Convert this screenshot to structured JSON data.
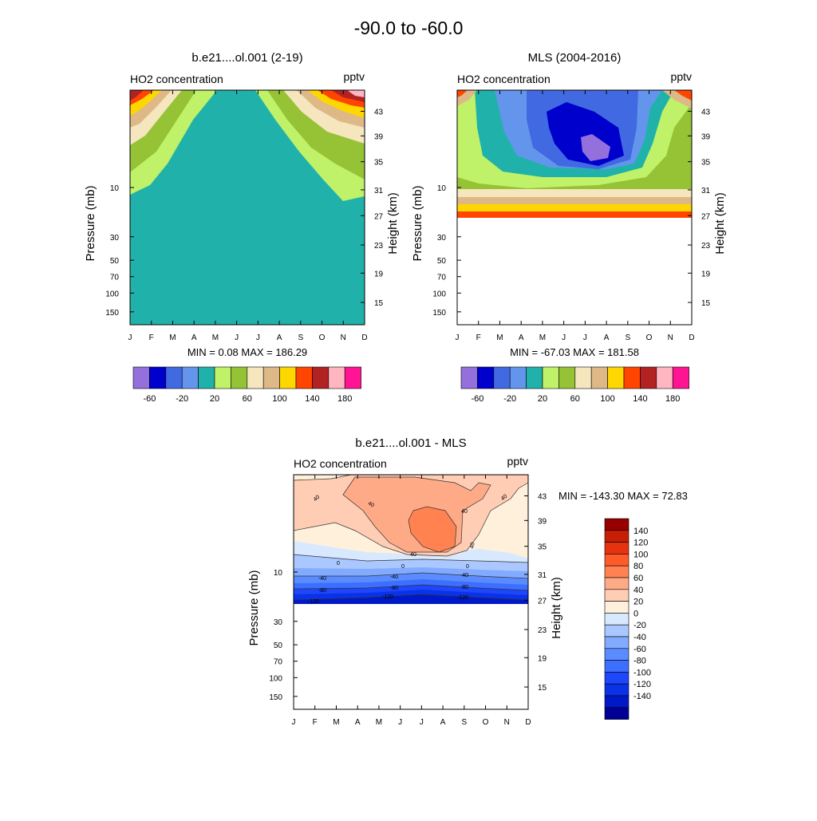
{
  "figure": {
    "title": "-90.0 to -60.0"
  },
  "months": [
    "J",
    "F",
    "M",
    "A",
    "M",
    "J",
    "J",
    "A",
    "S",
    "O",
    "N",
    "D"
  ],
  "pressure_ticks": [
    "10",
    "30",
    "50",
    "70",
    "100",
    "150"
  ],
  "height_ticks": [
    "43",
    "39",
    "35",
    "31",
    "27",
    "23",
    "19",
    "15"
  ],
  "labels": {
    "ylabel_left": "Pressure (mb)",
    "ylabel_right": "Height (km)"
  },
  "levels_top": [
    -60,
    -40,
    -20,
    0,
    20,
    40,
    60,
    80,
    100,
    120,
    140,
    160,
    180
  ],
  "levels_top_labels": [
    "-60",
    "-20",
    "20",
    "60",
    "100",
    "140",
    "180"
  ],
  "colors_top": [
    "#9370DB",
    "#0000CD",
    "#4169E1",
    "#6495ED",
    "#20B2AA",
    "#BFF268",
    "#96C236",
    "#F5E6BE",
    "#DEB887",
    "#FFD700",
    "#FF4500",
    "#B22222",
    "#FFB6C1",
    "#FF1493"
  ],
  "levels_diff": [
    -140,
    -120,
    -100,
    -80,
    -60,
    -40,
    -20,
    0,
    20,
    40,
    60,
    80,
    100,
    120,
    140
  ],
  "levels_diff_labels": [
    "140",
    "120",
    "100",
    "80",
    "60",
    "40",
    "20",
    "0",
    "-20",
    "-40",
    "-60",
    "-80",
    "-100",
    "-120",
    "-140"
  ],
  "colors_diff": [
    "#000096",
    "#0019C8",
    "#0A32E6",
    "#1E46FA",
    "#3C6EFF",
    "#5A8CFF",
    "#82AAFF",
    "#AAC8FF",
    "#D7E8FF",
    "#FFF0DC",
    "#FFCDB4",
    "#FFAA87",
    "#FF8250",
    "#FF5A28",
    "#E6320F",
    "#C81E05",
    "#960000"
  ],
  "chart_data": [
    {
      "type": "heatmap",
      "title": "b.e21....ol.001 (2-19)",
      "left_label": "HO2 concentration",
      "right_label": "pptv",
      "xlabel": "",
      "ylabel": "Pressure (mb)",
      "y2label": "Height (km)",
      "min_max_text": "MIN =   0.08  MAX = 186.29",
      "x": [
        "J",
        "F",
        "M",
        "A",
        "M",
        "J",
        "J",
        "A",
        "S",
        "O",
        "N",
        "D"
      ],
      "ylim_pressure": [
        200,
        1
      ],
      "note": "Seasonal HO2 field, high near upper corners (Jan/Dec), ~20 pptv elsewhere"
    },
    {
      "type": "heatmap",
      "title": "MLS (2004-2016)",
      "left_label": "HO2 concentration",
      "right_label": "pptv",
      "xlabel": "",
      "ylabel": "Pressure (mb)",
      "y2label": "Height (km)",
      "min_max_text": "MIN = -67.03  MAX = 181.58",
      "x": [
        "J",
        "F",
        "M",
        "A",
        "M",
        "J",
        "J",
        "A",
        "S",
        "O",
        "N",
        "D"
      ],
      "ylim_pressure": [
        200,
        1
      ],
      "note": "Data only above ~20 mb; minimum near -60 pptv in Jul-Aug at ~38 km"
    },
    {
      "type": "heatmap",
      "title": "b.e21....ol.001 - MLS",
      "left_label": "HO2 concentration",
      "right_label": "pptv",
      "xlabel": "",
      "ylabel": "Pressure (mb)",
      "y2label": "Height (km)",
      "min_max_text": "MIN = -143.30  MAX =  72.83",
      "x": [
        "J",
        "F",
        "M",
        "A",
        "M",
        "J",
        "J",
        "A",
        "S",
        "O",
        "N",
        "D"
      ],
      "ylim_pressure": [
        200,
        1
      ],
      "contour_labels": [
        "40",
        "40",
        "40",
        "40",
        "40",
        "40",
        "0",
        "0",
        "0",
        "-40",
        "-40",
        "-40",
        "-80",
        "-80",
        "-80",
        "-120",
        "-120",
        "-120"
      ]
    }
  ]
}
